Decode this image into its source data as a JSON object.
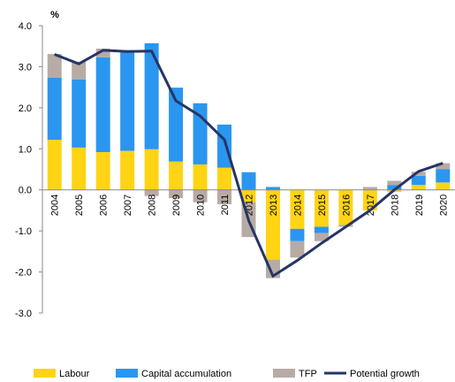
{
  "chart_data": {
    "type": "bar",
    "y_label": "%",
    "categories": [
      "2004",
      "2005",
      "2006",
      "2007",
      "2008",
      "2009",
      "2010",
      "2011",
      "2012",
      "2013",
      "2014",
      "2015",
      "2016",
      "2017",
      "2018",
      "2019",
      "2020"
    ],
    "series": [
      {
        "name": "Labour",
        "color": "#ffd414",
        "values": [
          1.22,
          1.03,
          0.92,
          0.95,
          0.99,
          0.69,
          0.62,
          0.54,
          -0.3,
          -1.7,
          -0.95,
          -0.9,
          -0.85,
          -0.5,
          -0.05,
          0.12,
          0.18
        ]
      },
      {
        "name": "Capital accumulation",
        "color": "#2a96f0",
        "values": [
          1.51,
          1.66,
          2.31,
          2.45,
          2.58,
          1.8,
          1.49,
          1.05,
          0.43,
          0.07,
          -0.3,
          -0.15,
          0,
          0,
          0.12,
          0.22,
          0.32
        ]
      },
      {
        "name": "TFP",
        "color": "#b7aba5",
        "values": [
          0.58,
          0.43,
          0.21,
          0,
          -0.15,
          -0.2,
          -0.3,
          -0.35,
          -0.85,
          -0.45,
          -0.4,
          -0.2,
          -0.05,
          0.07,
          0.1,
          0.1,
          0.15
        ]
      }
    ],
    "line": {
      "name": "Potential growth",
      "color": "#263566",
      "values": [
        3.3,
        3.07,
        3.4,
        3.37,
        3.38,
        2.17,
        1.8,
        1.22,
        -0.75,
        -2.1,
        -1.72,
        -1.3,
        -0.9,
        -0.5,
        0.0,
        0.45,
        0.65
      ]
    },
    "ylim": [
      -3.0,
      4.0
    ],
    "yticks": [
      {
        "value": -3.0,
        "label": "-3.0"
      },
      {
        "value": -2.0,
        "label": "-2.0"
      },
      {
        "value": -1.0,
        "label": "-1.0"
      },
      {
        "value": 0.0,
        "label": "0.0"
      },
      {
        "value": 1.0,
        "label": "1.0"
      },
      {
        "value": 2.0,
        "label": "2.0"
      },
      {
        "value": 3.0,
        "label": "3.0"
      },
      {
        "value": 4.0,
        "label": "4.0"
      }
    ]
  }
}
